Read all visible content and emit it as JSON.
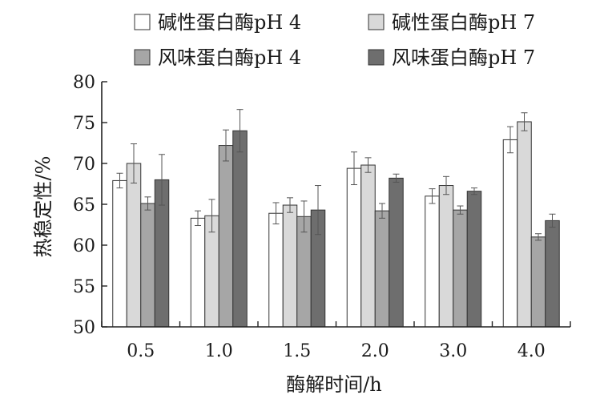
{
  "chart_data": {
    "type": "bar",
    "title": "",
    "xlabel": "酶解时间/h",
    "ylabel": "热稳定性/%",
    "categories": [
      "0.5",
      "1.0",
      "1.5",
      "2.0",
      "3.0",
      "4.0"
    ],
    "ylim": [
      50,
      80
    ],
    "yticks": [
      50,
      55,
      60,
      65,
      70,
      75,
      80
    ],
    "grid": false,
    "legend": "top",
    "series": [
      {
        "name": "碱性蛋白酶pH 4",
        "color": "#ffffff",
        "values": [
          67.9,
          63.3,
          63.9,
          69.4,
          66.0,
          72.9
        ],
        "errors": [
          0.9,
          0.9,
          1.3,
          2.0,
          0.9,
          1.6
        ]
      },
      {
        "name": "碱性蛋白酶pH 7",
        "color": "#d9d9d9",
        "values": [
          70.0,
          63.6,
          64.9,
          69.8,
          67.3,
          75.1
        ],
        "errors": [
          2.4,
          2.0,
          0.9,
          0.9,
          1.1,
          1.1
        ]
      },
      {
        "name": "风味蛋白酶pH 4",
        "color": "#a6a6a6",
        "values": [
          65.1,
          72.2,
          63.5,
          64.2,
          64.3,
          61.0
        ],
        "errors": [
          0.8,
          1.9,
          1.9,
          0.9,
          0.5,
          0.4
        ]
      },
      {
        "name": "风味蛋白酶pH 7",
        "color": "#6e6e6e",
        "values": [
          68.0,
          74.0,
          64.3,
          68.2,
          66.6,
          63.0
        ],
        "errors": [
          3.1,
          2.6,
          3.0,
          0.5,
          0.4,
          0.8
        ]
      }
    ]
  }
}
